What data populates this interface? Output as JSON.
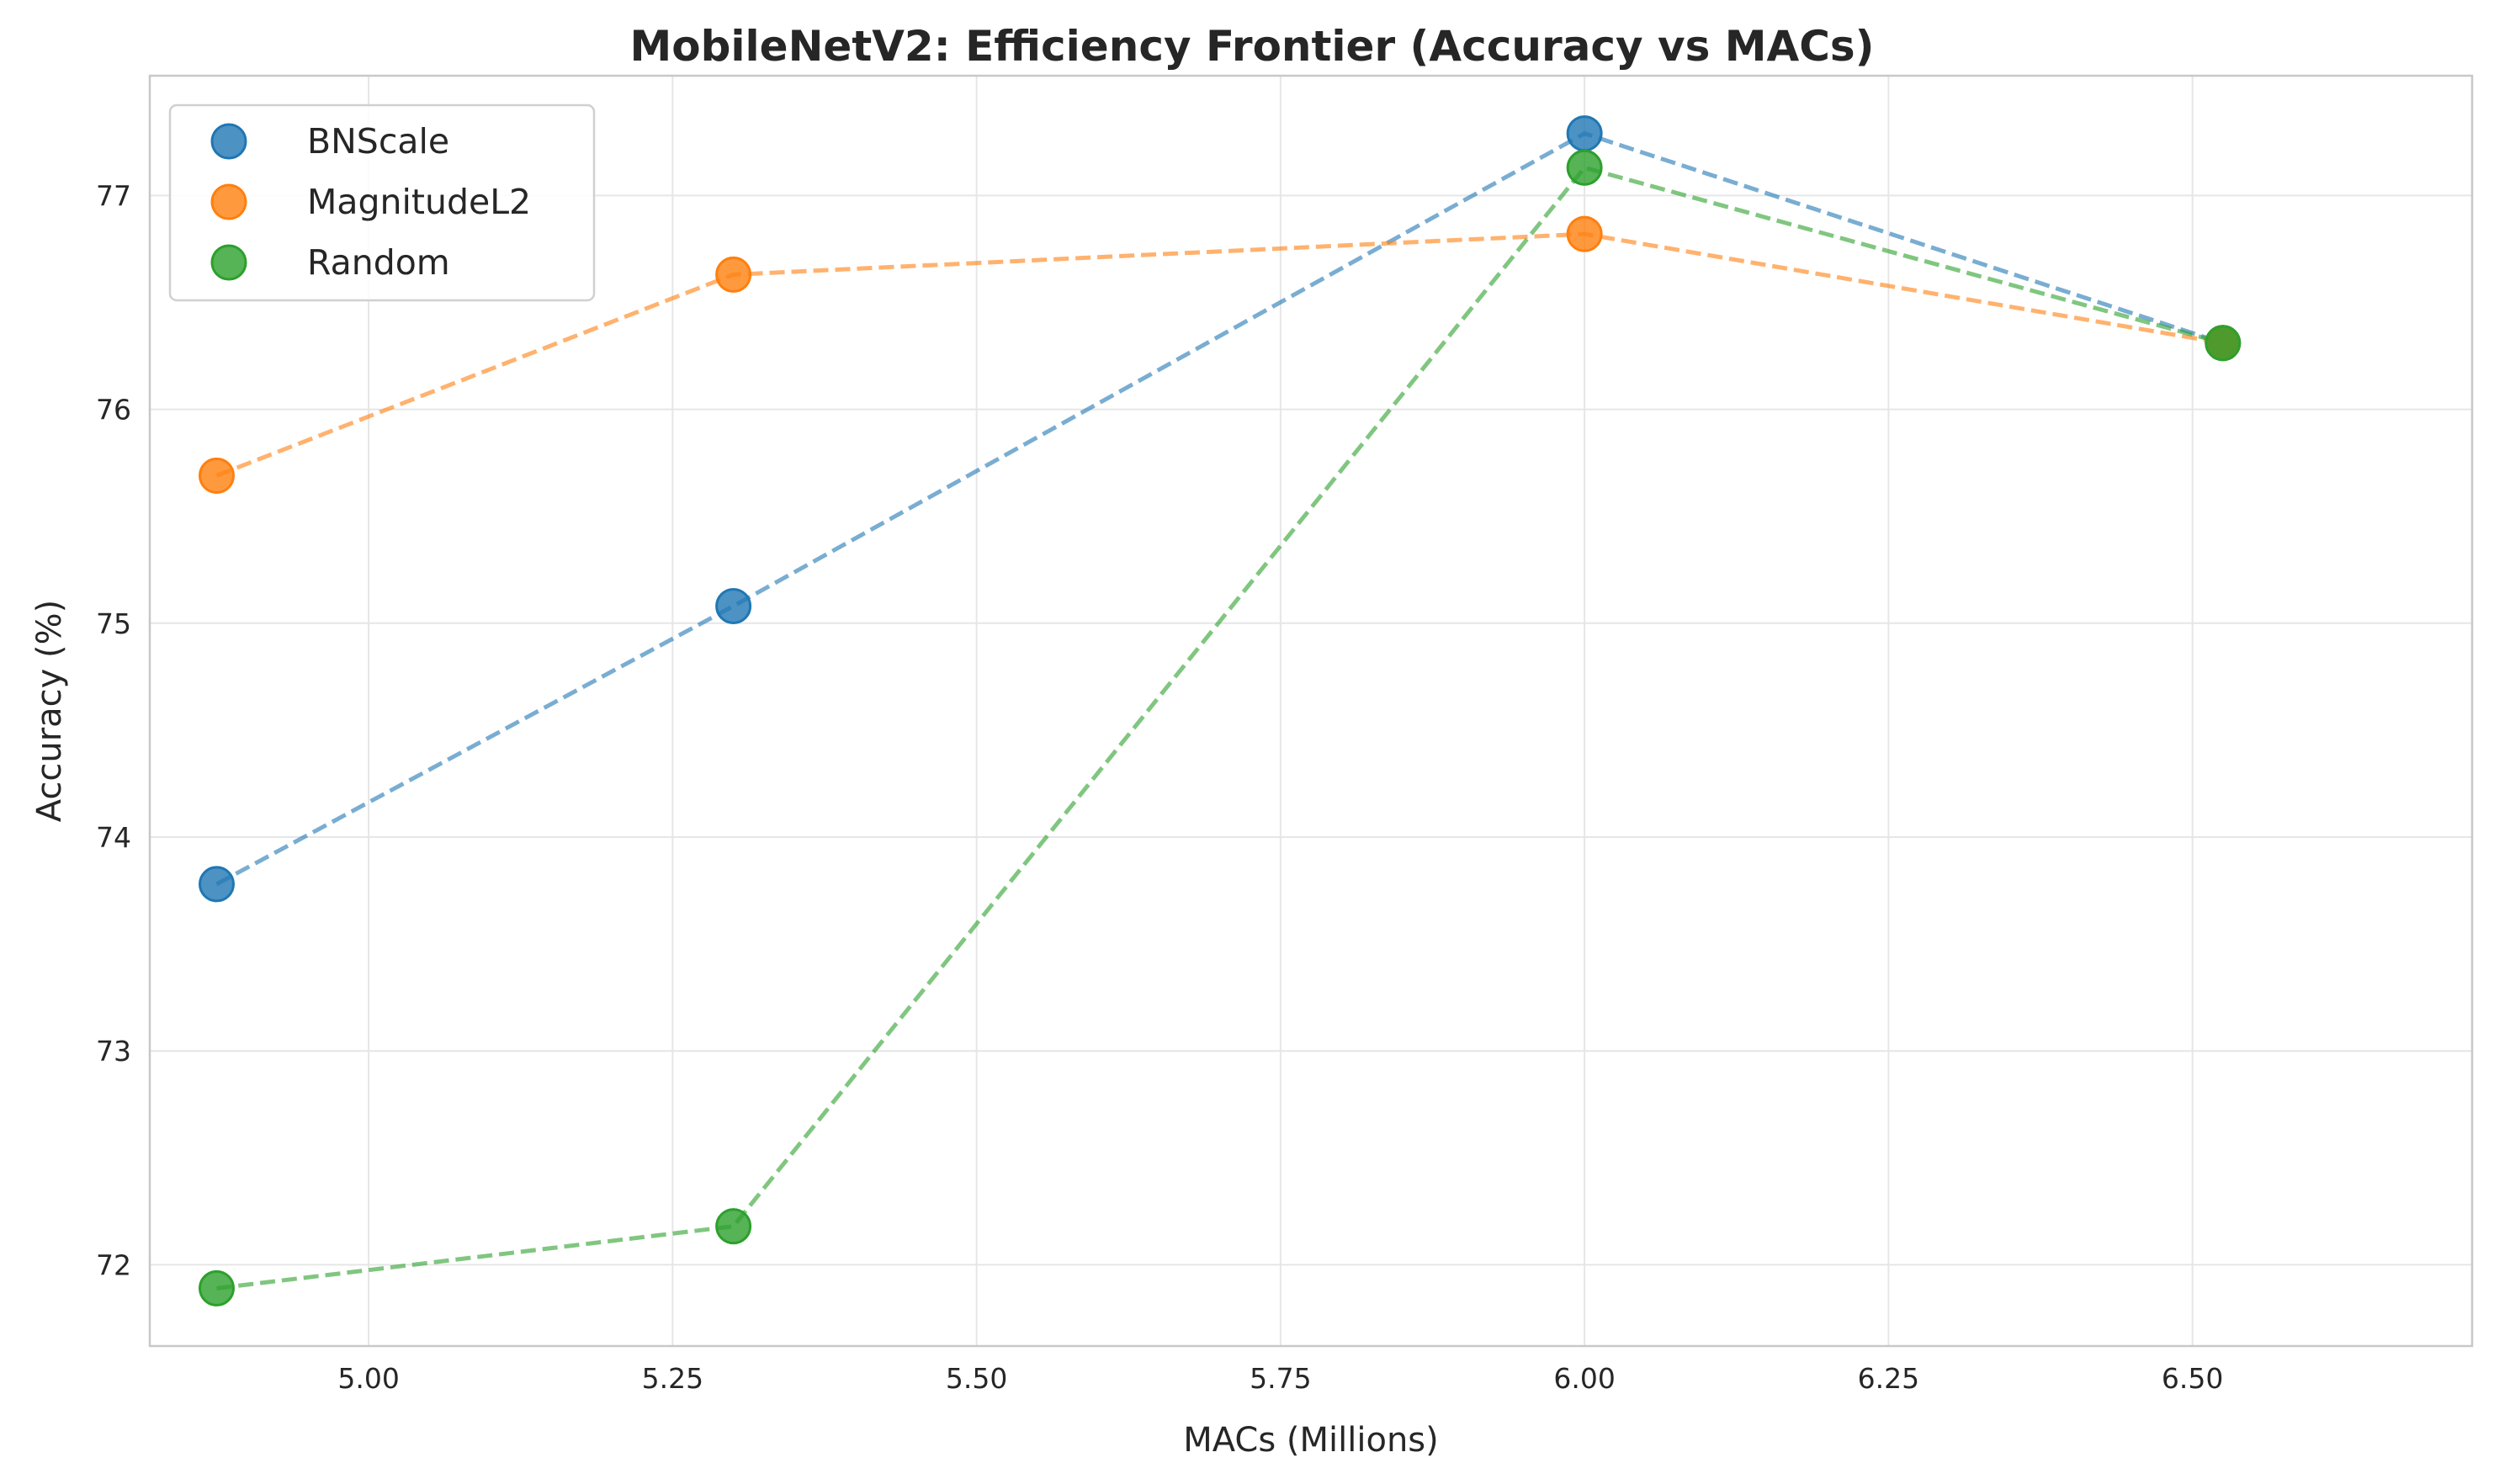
{
  "chart_data": {
    "type": "scatter",
    "title": "MobileNetV2: Efficiency Frontier (Accuracy vs MACs)",
    "xlabel": "MACs (Millions)",
    "ylabel": "Accuracy (%)",
    "xlim": [
      4.82,
      6.73
    ],
    "ylim": [
      71.62,
      77.56
    ],
    "xticks": [
      5.0,
      5.25,
      5.5,
      5.75,
      6.0,
      6.25,
      6.5
    ],
    "xtick_labels": [
      "5.00",
      "5.25",
      "5.50",
      "5.75",
      "6.00",
      "6.25",
      "6.50"
    ],
    "yticks": [
      72,
      73,
      74,
      75,
      76,
      77
    ],
    "ytick_labels": [
      "72",
      "73",
      "74",
      "75",
      "76",
      "77"
    ],
    "grid": true,
    "legend_position": "top-left",
    "connecting_lines": "dashed",
    "series": [
      {
        "name": "BNScale",
        "color": "#1f77b4",
        "x": [
          4.875,
          5.3,
          6.0,
          6.525
        ],
        "y": [
          73.78,
          75.08,
          77.29,
          76.31
        ]
      },
      {
        "name": "MagnitudeL2",
        "color": "#ff7f0e",
        "x": [
          4.875,
          5.3,
          6.0,
          6.525
        ],
        "y": [
          75.69,
          76.63,
          76.82,
          76.31
        ]
      },
      {
        "name": "Random",
        "color": "#2ca02c",
        "x": [
          4.875,
          5.3,
          6.0,
          6.525
        ],
        "y": [
          71.89,
          72.18,
          77.13,
          76.31
        ]
      }
    ]
  }
}
